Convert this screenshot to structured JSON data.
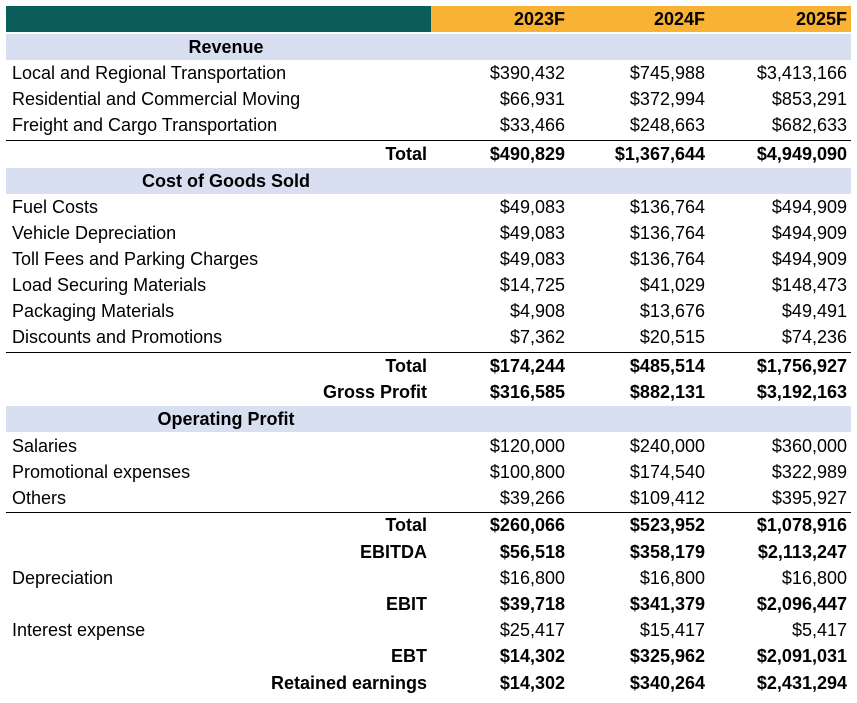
{
  "columns": [
    "2023F",
    "2024F",
    "2025F"
  ],
  "revenue": {
    "header": "Revenue",
    "items": [
      {
        "label": "Local and Regional Transportation",
        "values": [
          "$390,432",
          "$745,988",
          "$3,413,166"
        ]
      },
      {
        "label": "Residential and Commercial Moving",
        "values": [
          "$66,931",
          "$372,994",
          "$853,291"
        ]
      },
      {
        "label": "Freight and Cargo Transportation",
        "values": [
          "$33,466",
          "$248,663",
          "$682,633"
        ]
      }
    ],
    "total": {
      "label": "Total",
      "values": [
        "$490,829",
        "$1,367,644",
        "$4,949,090"
      ]
    }
  },
  "cogs": {
    "header": "Cost of Goods Sold",
    "items": [
      {
        "label": "Fuel Costs",
        "values": [
          "$49,083",
          "$136,764",
          "$494,909"
        ]
      },
      {
        "label": "Vehicle Depreciation",
        "values": [
          "$49,083",
          "$136,764",
          "$494,909"
        ]
      },
      {
        "label": "Toll Fees and Parking Charges",
        "values": [
          "$49,083",
          "$136,764",
          "$494,909"
        ]
      },
      {
        "label": "Load Securing Materials",
        "values": [
          "$14,725",
          "$41,029",
          "$148,473"
        ]
      },
      {
        "label": "Packaging Materials",
        "values": [
          "$4,908",
          "$13,676",
          "$49,491"
        ]
      },
      {
        "label": "Discounts and Promotions",
        "values": [
          "$7,362",
          "$20,515",
          "$74,236"
        ]
      }
    ],
    "total": {
      "label": "Total",
      "values": [
        "$174,244",
        "$485,514",
        "$1,756,927"
      ]
    },
    "gross_profit": {
      "label": "Gross Profit",
      "values": [
        "$316,585",
        "$882,131",
        "$3,192,163"
      ]
    }
  },
  "opex": {
    "header": "Operating Profit",
    "items": [
      {
        "label": "Salaries",
        "values": [
          "$120,000",
          "$240,000",
          "$360,000"
        ]
      },
      {
        "label": "Promotional expenses",
        "values": [
          "$100,800",
          "$174,540",
          "$322,989"
        ]
      },
      {
        "label": "Others",
        "values": [
          "$39,266",
          "$109,412",
          "$395,927"
        ]
      }
    ],
    "total": {
      "label": "Total",
      "values": [
        "$260,066",
        "$523,952",
        "$1,078,916"
      ]
    },
    "ebitda": {
      "label": "EBITDA",
      "values": [
        "$56,518",
        "$358,179",
        "$2,113,247"
      ]
    },
    "depreciation": {
      "label": "Depreciation",
      "values": [
        "$16,800",
        "$16,800",
        "$16,800"
      ]
    },
    "ebit": {
      "label": "EBIT",
      "values": [
        "$39,718",
        "$341,379",
        "$2,096,447"
      ]
    },
    "interest": {
      "label": "Interest expense",
      "values": [
        "$25,417",
        "$15,417",
        "$5,417"
      ]
    },
    "ebt": {
      "label": "EBT",
      "values": [
        "$14,302",
        "$325,962",
        "$2,091,031"
      ]
    },
    "retained": {
      "label": "Retained earnings",
      "values": [
        "$14,302",
        "$340,264",
        "$2,431,294"
      ]
    }
  }
}
